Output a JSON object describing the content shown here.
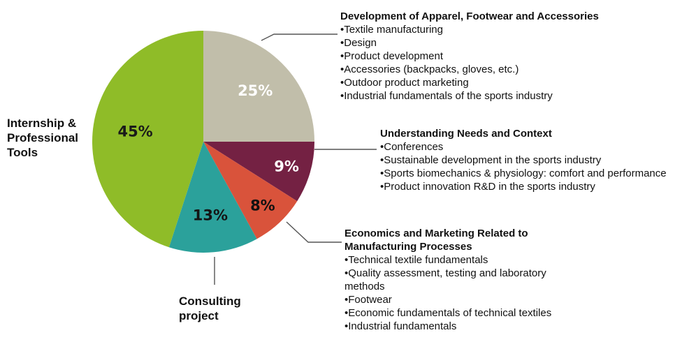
{
  "chart_data": {
    "type": "pie",
    "title": "",
    "colors": {
      "slice_25": "#c1beaa",
      "slice_9": "#742143",
      "slice_8": "#d9533b",
      "slice_13": "#2ba19b",
      "slice_45": "#8fbc28",
      "leader_line": "#555555",
      "label_text": "#111111"
    },
    "slices": [
      {
        "key": "apparel",
        "value": 25,
        "label": "25%",
        "color": "#c1beaa"
      },
      {
        "key": "needs",
        "value": 9,
        "label": "9%",
        "color": "#742143"
      },
      {
        "key": "econ",
        "value": 8,
        "label": "8%",
        "color": "#d9533b"
      },
      {
        "key": "consulting",
        "value": 13,
        "label": "13%",
        "color": "#2ba19b"
      },
      {
        "key": "internship",
        "value": 45,
        "label": "45%",
        "color": "#8fbc28"
      }
    ]
  },
  "blocks": {
    "apparel": {
      "title": "Development of Apparel, Footwear and Accessories",
      "items": [
        "•Textile manufacturing",
        "•Design",
        "•Product development",
        "•Accessories (backpacks, gloves, etc.)",
        "•Outdoor product marketing",
        "•Industrial fundamentals of the sports industry"
      ]
    },
    "needs": {
      "title": "Understanding Needs and Context",
      "items": [
        "•Conferences",
        "•Sustainable development in the sports industry",
        "•Sports biomechanics & physiology: comfort and performance",
        "•Product innovation R&D in the sports industry"
      ]
    },
    "econ": {
      "title": "Economics and Marketing Related to Manufacturing Processes",
      "items": [
        "•Technical textile fundamentals",
        "•Quality assessment, testing and laboratory methods",
        "•Footwear",
        "•Economic fundamentals of technical textiles",
        "•Industrial fundamentals"
      ]
    }
  },
  "labels": {
    "internship": "Internship & Professional Tools",
    "consulting": "Consulting project"
  }
}
